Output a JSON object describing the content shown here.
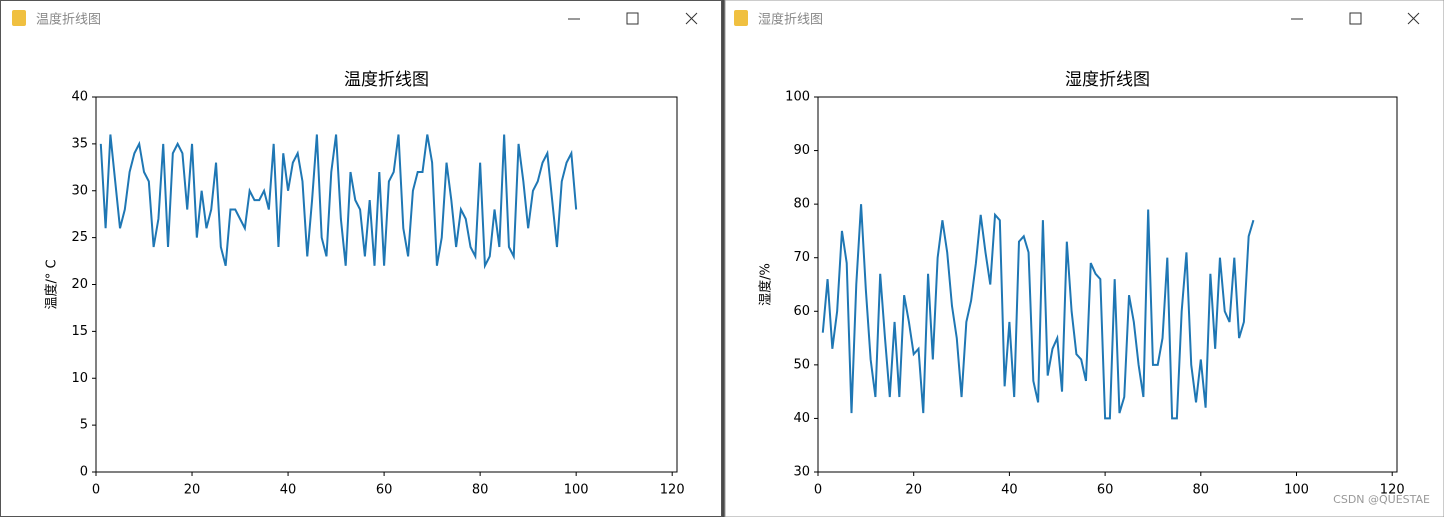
{
  "windows": [
    {
      "title": "温度折线图"
    },
    {
      "title": "湿度折线图"
    }
  ],
  "watermark": "CSDN @QUESTAE",
  "chart_data": [
    {
      "type": "line",
      "title": "温度折线图",
      "y_label": "温度/° C",
      "x": [
        1,
        2,
        3,
        4,
        5,
        6,
        7,
        8,
        9,
        10,
        11,
        12,
        13,
        14,
        15,
        16,
        17,
        18,
        19,
        20,
        21,
        22,
        23,
        24,
        25,
        26,
        27,
        28,
        29,
        30,
        31,
        32,
        33,
        34,
        35,
        36,
        37,
        38,
        39,
        40,
        41,
        42,
        43,
        44,
        45,
        46,
        47,
        48,
        49,
        50,
        51,
        52,
        53,
        54,
        55,
        56,
        57,
        58,
        59,
        60,
        61,
        62,
        63,
        64,
        65,
        66,
        67,
        68,
        69,
        70,
        71,
        72,
        73,
        74,
        75,
        76,
        77,
        78,
        79,
        80,
        81,
        82,
        83,
        84,
        85,
        86,
        87,
        88,
        89,
        90,
        91,
        92,
        93,
        94,
        95,
        96,
        97,
        98,
        99,
        100
      ],
      "values": [
        35,
        26,
        36,
        31,
        26,
        28,
        32,
        34,
        35,
        32,
        31,
        24,
        27,
        35,
        24,
        34,
        35,
        34,
        28,
        35,
        25,
        30,
        26,
        28,
        33,
        24,
        22,
        28,
        28,
        27,
        26,
        30,
        29,
        29,
        30,
        28,
        35,
        24,
        34,
        30,
        33,
        34,
        31,
        23,
        29,
        36,
        25,
        23,
        32,
        36,
        27,
        22,
        32,
        29,
        28,
        23,
        29,
        22,
        32,
        22,
        31,
        32,
        36,
        26,
        23,
        30,
        32,
        32,
        36,
        33,
        22,
        25,
        33,
        29,
        24,
        28,
        27,
        24,
        23,
        33,
        22,
        23,
        28,
        24,
        36,
        24,
        23,
        35,
        31,
        26,
        30,
        31,
        33,
        34,
        29,
        24,
        31,
        33,
        34,
        28
      ],
      "color": "#1f77b4",
      "xlim": [
        0,
        121
      ],
      "xticks": [
        0,
        20,
        40,
        60,
        80,
        100,
        120
      ],
      "ylim": [
        0,
        40
      ],
      "yticks": [
        0,
        5,
        10,
        15,
        20,
        25,
        30,
        35,
        40
      ]
    },
    {
      "type": "line",
      "title": "湿度折线图",
      "y_label": "湿度/%",
      "x": [
        1,
        2,
        3,
        4,
        5,
        6,
        7,
        8,
        9,
        10,
        11,
        12,
        13,
        14,
        15,
        16,
        17,
        18,
        19,
        20,
        21,
        22,
        23,
        24,
        25,
        26,
        27,
        28,
        29,
        30,
        31,
        32,
        33,
        34,
        35,
        36,
        37,
        38,
        39,
        40,
        41,
        42,
        43,
        44,
        45,
        46,
        47,
        48,
        49,
        50,
        51,
        52,
        53,
        54,
        55,
        56,
        57,
        58,
        59,
        60,
        61,
        62,
        63,
        64,
        65,
        66,
        67,
        68,
        69,
        70,
        71,
        72,
        73,
        74,
        75,
        76,
        77,
        78,
        79,
        80,
        81,
        82,
        83,
        84,
        85,
        86,
        87,
        88,
        89,
        90,
        91
      ],
      "values": [
        56,
        66,
        53,
        60,
        75,
        69,
        41,
        65,
        80,
        64,
        51,
        44,
        67,
        55,
        44,
        58,
        44,
        63,
        58,
        52,
        53,
        41,
        67,
        51,
        70,
        77,
        71,
        61,
        55,
        44,
        58,
        62,
        69,
        78,
        71,
        65,
        78,
        77,
        46,
        58,
        44,
        73,
        74,
        71,
        47,
        43,
        77,
        48,
        53,
        55,
        45,
        73,
        60,
        52,
        51,
        47,
        69,
        67,
        66,
        40,
        40,
        66,
        41,
        44,
        63,
        58,
        50,
        44,
        79,
        50,
        50,
        55,
        70,
        40,
        40,
        60,
        71,
        50,
        43,
        51,
        42,
        67,
        53,
        70,
        60,
        58,
        70,
        55,
        58,
        74,
        77
      ],
      "color": "#1f77b4",
      "xlim": [
        0,
        121
      ],
      "xticks": [
        0,
        20,
        40,
        60,
        80,
        100,
        120
      ],
      "ylim": [
        30,
        100
      ],
      "yticks": [
        30,
        40,
        50,
        60,
        70,
        80,
        90,
        100
      ]
    }
  ]
}
